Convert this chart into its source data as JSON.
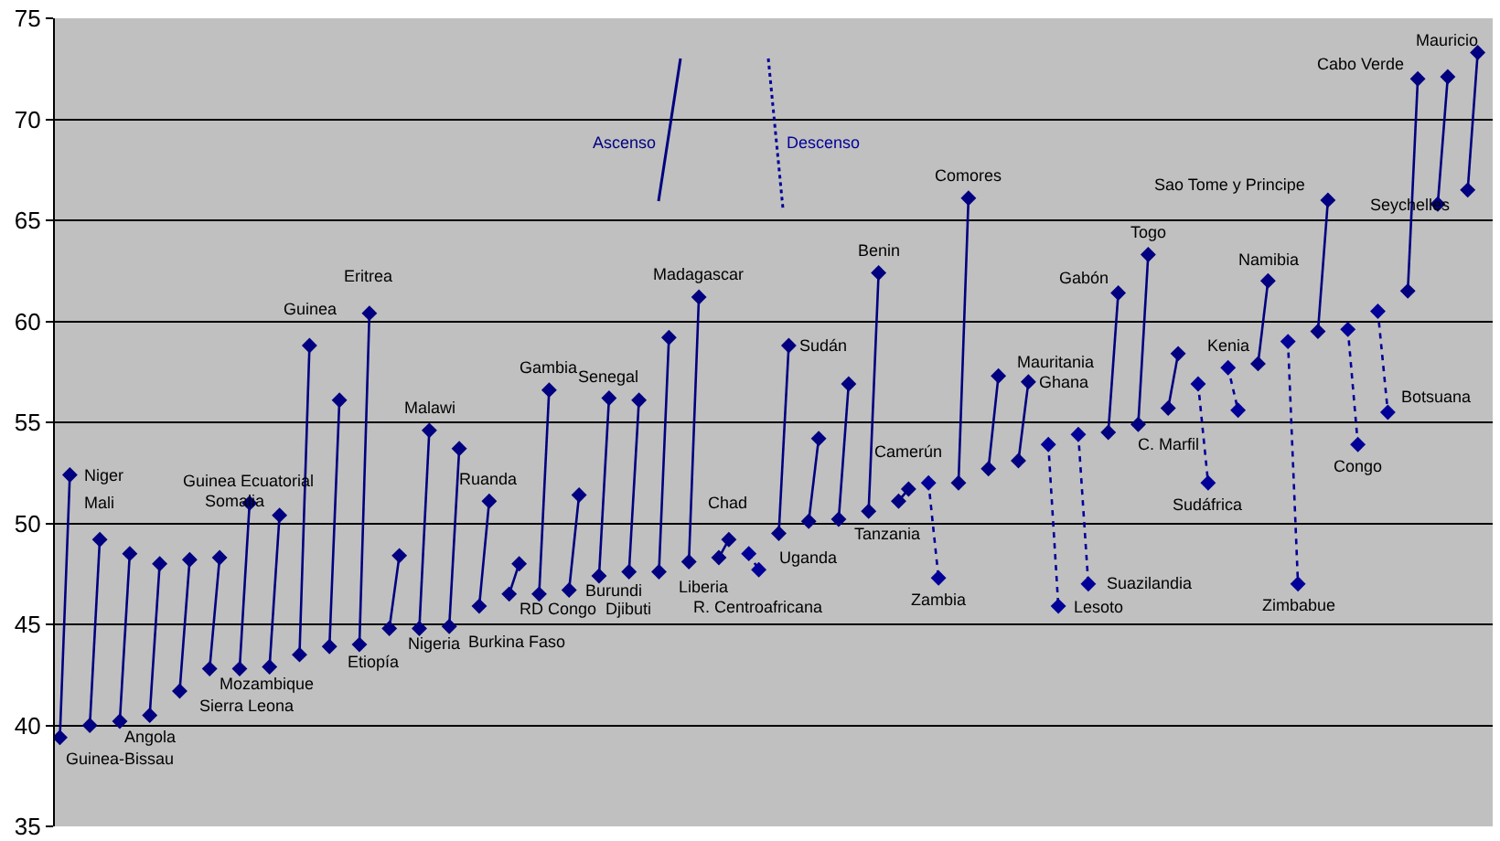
{
  "chart_data": {
    "type": "line",
    "marker": "diamond",
    "grid": "y",
    "tick_labels": "y",
    "legend": "top",
    "ylim": [
      35,
      75
    ],
    "yticks": [
      35,
      40,
      45,
      50,
      55,
      60,
      65,
      70,
      75
    ],
    "categories": [
      null,
      null,
      null,
      null,
      null,
      null,
      null,
      null,
      null,
      null,
      null,
      null,
      null,
      null,
      null,
      null,
      null,
      null,
      null,
      null,
      null,
      null,
      null,
      null,
      null,
      null,
      null,
      null,
      null,
      null,
      null,
      null,
      null,
      null,
      null,
      null,
      null,
      null,
      null,
      null,
      null,
      null,
      null,
      null,
      null,
      null,
      null,
      null,
      null,
      null,
      null,
      null,
      null,
      null,
      null,
      null,
      null,
      null,
      null,
      null,
      null,
      null,
      null,
      null,
      null,
      null,
      null,
      null,
      null,
      null,
      null,
      null,
      null,
      null,
      null,
      null,
      null,
      null,
      null,
      null,
      null,
      null,
      null,
      null,
      null,
      null,
      null,
      null,
      null,
      null,
      null,
      null,
      null,
      null,
      null,
      null,
      null,
      null,
      null,
      null,
      null,
      null,
      null,
      null,
      null,
      null,
      null,
      null,
      null,
      null,
      null,
      null,
      null,
      null,
      null,
      null,
      null,
      null,
      null,
      null,
      null,
      null,
      null,
      null,
      null,
      null,
      null,
      null,
      null,
      null,
      null,
      null,
      null,
      null,
      null,
      null,
      null,
      null,
      null,
      null,
      null,
      null,
      null,
      null
    ],
    "series": [
      {
        "name": "Ascenso",
        "color": "#000080",
        "line_style": "solid",
        "values": [
          39.4,
          52.4,
          null,
          40.0,
          49.2,
          null,
          40.2,
          48.5,
          null,
          40.5,
          48.0,
          null,
          41.7,
          48.2,
          null,
          42.8,
          48.3,
          null,
          42.8,
          51.0,
          null,
          42.9,
          50.4,
          null,
          43.5,
          58.8,
          null,
          43.9,
          56.1,
          null,
          44.0,
          60.4,
          null,
          44.8,
          48.4,
          null,
          44.8,
          54.6,
          null,
          44.9,
          53.7,
          null,
          45.9,
          51.1,
          null,
          46.5,
          48.0,
          null,
          46.5,
          56.6,
          null,
          46.7,
          51.4,
          null,
          47.4,
          56.2,
          null,
          47.6,
          56.1,
          null,
          47.6,
          59.2,
          null,
          48.1,
          61.2,
          null,
          48.3,
          49.2,
          null,
          null,
          null,
          null,
          49.5,
          58.8,
          null,
          50.1,
          54.2,
          null,
          50.2,
          56.9,
          null,
          50.6,
          62.4,
          null,
          51.1,
          51.7,
          null,
          null,
          null,
          null,
          52.0,
          66.1,
          null,
          52.7,
          57.3,
          null,
          53.1,
          57.0,
          null,
          null,
          null,
          null,
          null,
          null,
          null,
          54.5,
          61.4,
          null,
          54.9,
          63.3,
          null,
          55.7,
          58.4,
          null,
          null,
          null,
          null,
          null,
          null,
          null,
          57.9,
          62.0,
          null,
          null,
          null,
          null,
          59.5,
          66.0,
          null,
          null,
          null,
          null,
          null,
          null,
          null,
          61.5,
          72.0,
          null,
          65.8,
          72.1,
          null,
          66.5,
          73.3,
          null
        ]
      },
      {
        "name": "Descenso",
        "color": "#000099",
        "line_style": "dotted",
        "values": [
          null,
          null,
          null,
          null,
          null,
          null,
          null,
          null,
          null,
          null,
          null,
          null,
          null,
          null,
          null,
          null,
          null,
          null,
          null,
          null,
          null,
          null,
          null,
          null,
          null,
          null,
          null,
          null,
          null,
          null,
          null,
          null,
          null,
          null,
          null,
          null,
          null,
          null,
          null,
          null,
          null,
          null,
          null,
          null,
          null,
          null,
          null,
          null,
          null,
          null,
          null,
          null,
          null,
          null,
          null,
          null,
          null,
          null,
          null,
          null,
          null,
          null,
          null,
          null,
          null,
          null,
          null,
          null,
          null,
          48.5,
          47.7,
          null,
          null,
          null,
          null,
          null,
          null,
          null,
          null,
          null,
          null,
          null,
          null,
          null,
          null,
          null,
          null,
          52.0,
          47.3,
          null,
          null,
          null,
          null,
          null,
          null,
          null,
          null,
          null,
          null,
          53.9,
          45.9,
          null,
          54.4,
          47.0,
          null,
          null,
          null,
          null,
          null,
          null,
          null,
          null,
          null,
          null,
          56.9,
          52.0,
          null,
          57.7,
          55.6,
          null,
          null,
          null,
          null,
          59.0,
          47.0,
          null,
          null,
          null,
          null,
          59.6,
          53.9,
          null,
          60.5,
          55.5,
          null,
          null,
          null,
          null,
          null,
          null,
          null,
          null,
          null,
          null
        ]
      }
    ],
    "annotations": [
      "Niger",
      "Mali",
      "Guinea-Bissau",
      "Angola",
      "Sierra Leona",
      "Mozambique",
      "Guinea Ecuatorial",
      "Somalia",
      "Guinea",
      "Etiopía",
      "Eritrea",
      "Nigeria",
      "Malawi",
      "Burkina Faso",
      "Ruanda",
      "RD Congo",
      "Gambia",
      "Burundi",
      "Senegal",
      "Djibuti",
      "Liberia",
      "Madagascar",
      "Chad",
      "R. Centroafricana",
      "Sudán",
      "Uganda",
      "Tanzania",
      "Benin",
      "Camerún",
      "Zambia",
      "Comores",
      "Mauritania",
      "Ghana",
      "Lesoto",
      "Suazilandia",
      "Gabón",
      "Togo",
      "C. Marfil",
      "Sudáfrica",
      "Kenia",
      "Namibia",
      "Zimbabue",
      "Sao Tome y Principe",
      "Congo",
      "Botsuana",
      "Cabo Verde",
      "Mauricio",
      "Seychelles"
    ]
  }
}
